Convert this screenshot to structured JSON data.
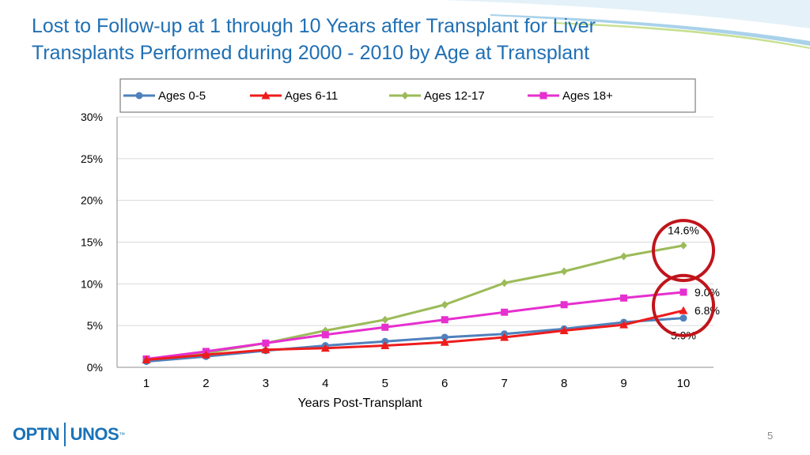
{
  "slide": {
    "title_line1": "Lost to Follow-up at 1 through 10 Years after Transplant for Liver",
    "title_line2": "Transplants Performed during 2000 - 2010 by Age at Transplant",
    "logo_left": "OPTN",
    "logo_right": "UNOS",
    "logo_mark": "™",
    "page_number": "5"
  },
  "colors": {
    "title": "#1f6fb4",
    "accent_circle": "#c0141b",
    "swoosh": "#7bbfe0"
  },
  "chart_data": {
    "type": "line",
    "title": "",
    "xlabel": "Years Post-Transplant",
    "ylabel": "",
    "categories": [
      "1",
      "2",
      "3",
      "4",
      "5",
      "6",
      "7",
      "8",
      "9",
      "10"
    ],
    "ylim": [
      0,
      30
    ],
    "yticks": [
      0,
      5,
      10,
      15,
      20,
      25,
      30
    ],
    "ytick_labels": [
      "0%",
      "5%",
      "10%",
      "15%",
      "20%",
      "25%",
      "30%"
    ],
    "grid": true,
    "legend": "top",
    "series": [
      {
        "name": "Ages 0-5",
        "color": "#4f81bd",
        "marker": "circle",
        "values": [
          0.7,
          1.3,
          2.0,
          2.6,
          3.1,
          3.6,
          4.0,
          4.6,
          5.4,
          5.9
        ]
      },
      {
        "name": "Ages 6-11",
        "color": "#ee1c1c",
        "marker": "triangle",
        "values": [
          0.9,
          1.5,
          2.1,
          2.3,
          2.6,
          3.0,
          3.6,
          4.4,
          5.1,
          6.8
        ]
      },
      {
        "name": "Ages 12-17",
        "color": "#9bbb59",
        "marker": "diamond",
        "values": [
          0.8,
          1.7,
          2.9,
          4.4,
          5.7,
          7.5,
          10.1,
          11.5,
          13.3,
          14.6
        ]
      },
      {
        "name": "Ages 18+",
        "color": "#e62fcf",
        "marker": "square",
        "values": [
          1.0,
          1.9,
          2.9,
          3.9,
          4.8,
          5.7,
          6.6,
          7.5,
          8.3,
          9.0
        ]
      }
    ],
    "annotations": [
      {
        "text": "14.6%",
        "series": "Ages 12-17",
        "category": "10"
      },
      {
        "text": "9.0%",
        "series": "Ages 18+",
        "category": "10"
      },
      {
        "text": "6.8%",
        "series": "Ages 6-11",
        "category": "10"
      },
      {
        "text": "5.9%",
        "series": "Ages 0-5",
        "category": "10"
      }
    ]
  }
}
